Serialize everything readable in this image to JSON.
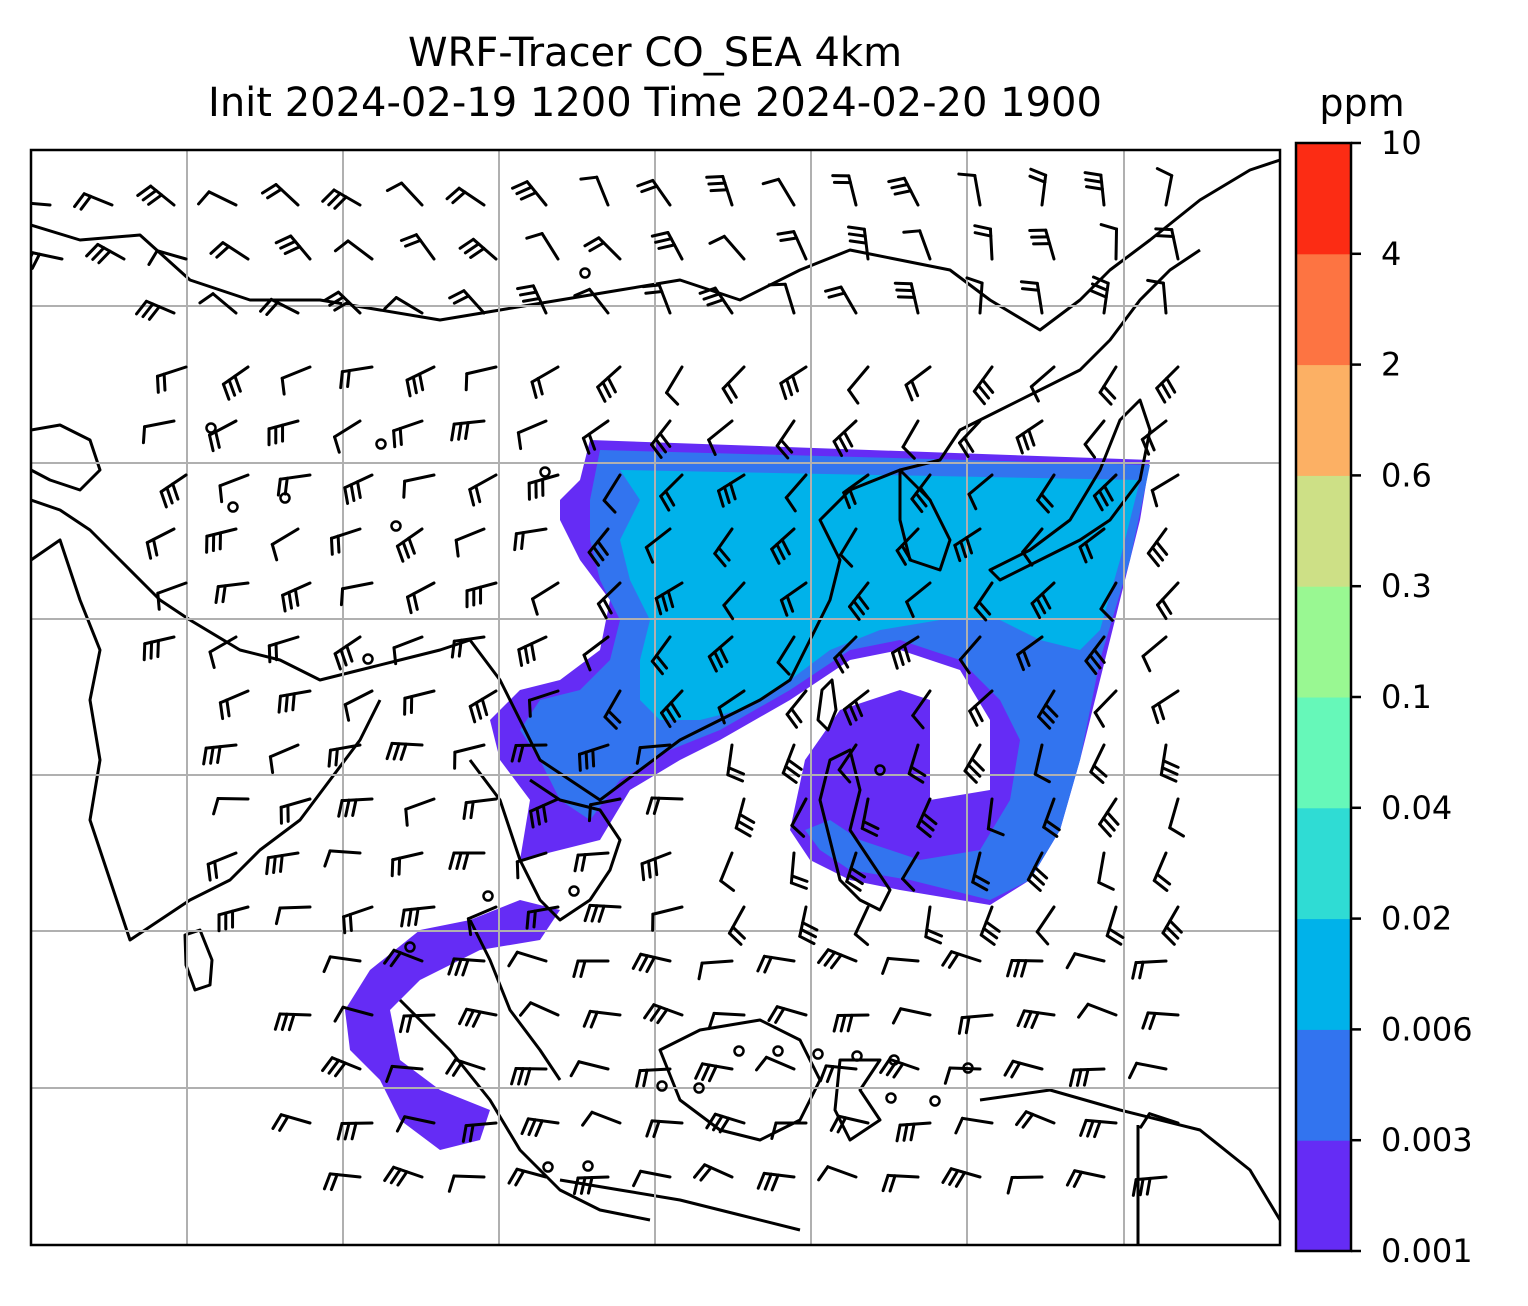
{
  "title": {
    "line1": "WRF-Tracer CO_SEA 4km",
    "line2": "Init 2024-02-19 1200 Time 2024-02-20 1900"
  },
  "colorbar": {
    "unit": "ppm",
    "levels": [
      "0.001",
      "0.003",
      "0.006",
      "0.02",
      "0.04",
      "0.1",
      "0.3",
      "0.6",
      "2",
      "4",
      "10"
    ],
    "colors": [
      "#652cf5",
      "#3274ef",
      "#00b2ea",
      "#2fdcd4",
      "#66f8b9",
      "#99f892",
      "#cde086",
      "#fcb064",
      "#fd7442",
      "#fc2c14"
    ]
  },
  "map": {
    "background": "#ffffff",
    "grid_color": "#b0b0b0",
    "coast_color": "#000000",
    "barb_color": "#000000"
  }
}
